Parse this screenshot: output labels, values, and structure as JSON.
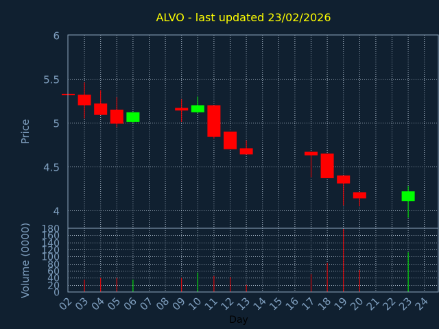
{
  "chart_data": {
    "type": "candlestick",
    "title": "ALVO - last updated 23/02/2026",
    "xlabel": "Day",
    "days": [
      "02",
      "03",
      "04",
      "05",
      "06",
      "07",
      "08",
      "09",
      "10",
      "11",
      "12",
      "13",
      "14",
      "15",
      "16",
      "17",
      "18",
      "19",
      "20",
      "21",
      "22",
      "23",
      "24"
    ],
    "price_panel": {
      "ylabel": "Price",
      "ylim": [
        3.8,
        6.0
      ],
      "yticks": [
        "4",
        "4.5",
        "5",
        "5.5",
        "6"
      ],
      "ytick_values": [
        4,
        4.5,
        5,
        5.5,
        6
      ],
      "candles": [
        {
          "day": "02",
          "open": 5.33,
          "close": 5.32,
          "high": 5.33,
          "low": 5.32
        },
        {
          "day": "03",
          "open": 5.32,
          "close": 5.2,
          "high": 5.46,
          "low": 5.05
        },
        {
          "day": "04",
          "open": 5.22,
          "close": 5.09,
          "high": 5.37,
          "low": 5.09
        },
        {
          "day": "05",
          "open": 5.15,
          "close": 4.99,
          "high": 5.29,
          "low": 4.95
        },
        {
          "day": "06",
          "open": 5.01,
          "close": 5.12,
          "high": 5.12,
          "low": 5.0
        },
        {
          "day": "09",
          "open": 5.17,
          "close": 5.14,
          "high": 5.27,
          "low": 5.01
        },
        {
          "day": "10",
          "open": 5.12,
          "close": 5.2,
          "high": 5.3,
          "low": 5.11
        },
        {
          "day": "11",
          "open": 5.2,
          "close": 4.84,
          "high": 5.2,
          "low": 4.82
        },
        {
          "day": "12",
          "open": 4.9,
          "close": 4.7,
          "high": 4.9,
          "low": 4.7
        },
        {
          "day": "13",
          "open": 4.71,
          "close": 4.64,
          "high": 4.8,
          "low": 4.64
        },
        {
          "day": "17",
          "open": 4.67,
          "close": 4.63,
          "high": 4.67,
          "low": 4.38
        },
        {
          "day": "18",
          "open": 4.65,
          "close": 4.37,
          "high": 4.65,
          "low": 4.37
        },
        {
          "day": "19",
          "open": 4.4,
          "close": 4.31,
          "high": 4.4,
          "low": 4.06
        },
        {
          "day": "20",
          "open": 4.21,
          "close": 4.14,
          "high": 4.21,
          "low": 4.05
        },
        {
          "day": "23",
          "open": 4.11,
          "close": 4.22,
          "high": 4.28,
          "low": 3.92
        }
      ]
    },
    "volume_panel": {
      "ylabel": "Volume (0000)",
      "ylim": [
        0,
        180
      ],
      "yticks": [
        "0",
        "20",
        "40",
        "60",
        "80",
        "100",
        "120",
        "140",
        "160",
        "180"
      ],
      "ytick_values": [
        0,
        20,
        40,
        60,
        80,
        100,
        120,
        140,
        160,
        180
      ],
      "bars": [
        {
          "day": "03",
          "value": 35,
          "direction": "down"
        },
        {
          "day": "04",
          "value": 40,
          "direction": "down"
        },
        {
          "day": "05",
          "value": 40,
          "direction": "down"
        },
        {
          "day": "06",
          "value": 35,
          "direction": "up"
        },
        {
          "day": "09",
          "value": 40,
          "direction": "down"
        },
        {
          "day": "10",
          "value": 55,
          "direction": "up"
        },
        {
          "day": "11",
          "value": 45,
          "direction": "down"
        },
        {
          "day": "12",
          "value": 42,
          "direction": "down"
        },
        {
          "day": "13",
          "value": 20,
          "direction": "down"
        },
        {
          "day": "17",
          "value": 50,
          "direction": "down"
        },
        {
          "day": "18",
          "value": 82,
          "direction": "down"
        },
        {
          "day": "19",
          "value": 178,
          "direction": "down"
        },
        {
          "day": "20",
          "value": 62,
          "direction": "down"
        },
        {
          "day": "23",
          "value": 112,
          "direction": "up"
        }
      ]
    },
    "grid": true,
    "colors": {
      "background": "#102030",
      "title": "#ffff00",
      "axis_text": "#7f9fbf",
      "frame": "#8fa8c0",
      "grid": "#a0b0c0",
      "up": "#00ff00",
      "down": "#ff0000"
    }
  }
}
